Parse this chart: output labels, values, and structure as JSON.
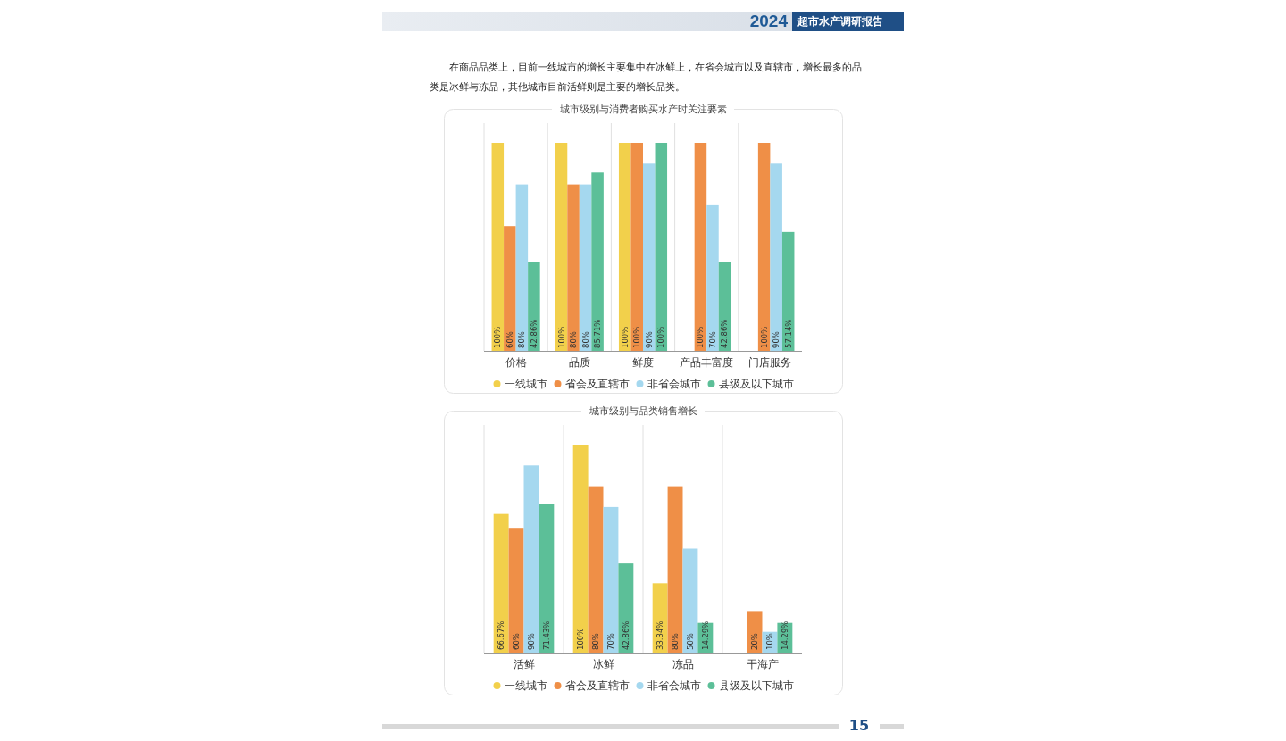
{
  "chart_data": [
    {
      "type": "bar",
      "title": "城市级别与消费者购买水产时关注要素",
      "annotations": [
        "2024",
        "超市水产调研报告",
        "在商品品类上，目前一线城市的增长主要集中在冰鲜上，在省会城市以及直辖市，增长最多的品类是冰鲜与冻品，其他城市目前活鲜则是主要的增长品类。"
      ],
      "categories": [
        "价格",
        "品质",
        "鲜度",
        "产品丰富度",
        "门店服务"
      ],
      "legend": "bottom",
      "grid": "x",
      "series": [
        {
          "name": "一线城市",
          "color": "#f2d04b",
          "values": [
            100,
            100,
            100,
            null,
            null
          ],
          "value_labels": [
            "100%",
            "100%",
            "100%",
            null,
            null
          ]
        },
        {
          "name": "省会及直辖市",
          "color": "#ef8f47",
          "values": [
            60,
            80,
            100,
            100,
            100
          ],
          "value_labels": [
            "60%",
            "80%",
            "100%",
            "100%",
            "100%"
          ]
        },
        {
          "name": "非省会城市",
          "color": "#a5d8ef",
          "values": [
            80,
            80,
            90,
            70,
            90
          ],
          "value_labels": [
            "80%",
            "80%",
            "90%",
            "70%",
            "90%"
          ]
        },
        {
          "name": "县级及以下城市",
          "color": "#5cbf98",
          "values": [
            42.86,
            85.71,
            100,
            42.86,
            57.14
          ],
          "value_labels": [
            "42.86%",
            "85.71%",
            "100%",
            "42.86%",
            "57.14%"
          ]
        }
      ]
    },
    {
      "type": "bar",
      "title": "城市级别与品类销售增长",
      "annotations": [
        "15"
      ],
      "categories": [
        "活鲜",
        "冰鲜",
        "冻品",
        "干海产"
      ],
      "legend": "bottom",
      "grid": "x",
      "series": [
        {
          "name": "一线城市",
          "color": "#f2d04b",
          "values": [
            66.67,
            100,
            33.34,
            null
          ],
          "value_labels": [
            "66.67%",
            "100%",
            "33.34%",
            null
          ]
        },
        {
          "name": "省会及直辖市",
          "color": "#ef8f47",
          "values": [
            60,
            80,
            80,
            20
          ],
          "value_labels": [
            "60%",
            "80%",
            "80%",
            "20%"
          ]
        },
        {
          "name": "非省会城市",
          "color": "#a5d8ef",
          "values": [
            90,
            70,
            50,
            10
          ],
          "value_labels": [
            "90%",
            "70%",
            "50%",
            "10%"
          ]
        },
        {
          "name": "县级及以下城市",
          "color": "#5cbf98",
          "values": [
            71.43,
            42.86,
            14.29,
            14.29
          ],
          "value_labels": [
            "71.43%",
            "42.86%",
            "14.29%",
            "14.29%"
          ]
        }
      ]
    }
  ]
}
